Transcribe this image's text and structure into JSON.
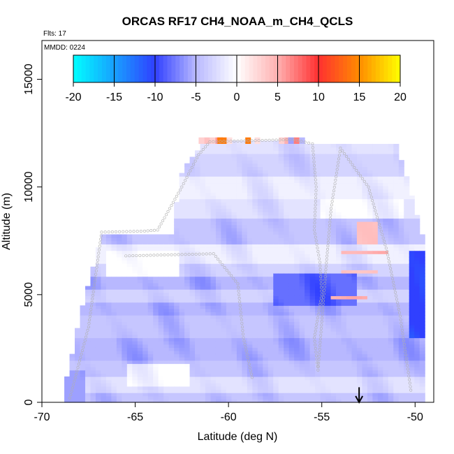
{
  "chart_data": {
    "type": "heatmap",
    "title": "ORCAS RF17 CH4_NOAA_m_CH4_QCLS",
    "flights_label": "Flts: 17",
    "date_label": "MMDD: 0224",
    "xlabel": "Latitude (deg N)",
    "ylabel": "Altitude (m)",
    "xlim": [
      -70,
      -49
    ],
    "ylim": [
      0,
      16800
    ],
    "x_ticks": [
      -70,
      -65,
      -60,
      -55,
      -50
    ],
    "x_tick_labels": [
      "-70",
      "-65",
      "-60",
      "-55",
      "-50"
    ],
    "y_ticks": [
      0,
      5000,
      10000,
      15000
    ],
    "y_tick_labels": [
      "0",
      "5000",
      "10000",
      "15000"
    ],
    "colorbar": {
      "min": -20,
      "max": 20,
      "ticks": [
        -20,
        -15,
        -10,
        -5,
        0,
        5,
        10,
        15,
        20
      ],
      "tick_labels": [
        "-20",
        "-15",
        "-10",
        "-5",
        "0",
        "5",
        "10",
        "15",
        "20"
      ],
      "stops": [
        {
          "v": -20,
          "color": "#00ffff"
        },
        {
          "v": -10,
          "color": "#3040ff"
        },
        {
          "v": -5,
          "color": "#b8b8ff"
        },
        {
          "v": 0,
          "color": "#ffffff"
        },
        {
          "v": 5,
          "color": "#ffb0b0"
        },
        {
          "v": 10,
          "color": "#ff3030"
        },
        {
          "v": 15,
          "color": "#ff8c00"
        },
        {
          "v": 20,
          "color": "#ffff00"
        }
      ]
    },
    "grid": false,
    "arrow_latitude": -53,
    "field": {
      "lat_range": [
        -68.8,
        -49.5
      ],
      "base_alt": 0,
      "top_alt_profile": [
        [
          -68.8,
          500
        ],
        [
          -68,
          3800
        ],
        [
          -67.2,
          6500
        ],
        [
          -66.8,
          7700
        ],
        [
          -63,
          7700
        ],
        [
          -62.6,
          10500
        ],
        [
          -61.8,
          11500
        ],
        [
          -61.2,
          12100
        ],
        [
          -57,
          12150
        ],
        [
          -55,
          11900
        ],
        [
          -51,
          11950
        ],
        [
          -50.5,
          10500
        ],
        [
          -50,
          9000
        ],
        [
          -49.5,
          7300
        ]
      ],
      "layers": [
        {
          "alt": [
            0,
            400
          ],
          "value": -4
        },
        {
          "alt": [
            400,
            1200
          ],
          "value": -2
        },
        {
          "alt": [
            1200,
            2000
          ],
          "value": -4
        },
        {
          "alt": [
            2000,
            3000
          ],
          "value": -5
        },
        {
          "alt": [
            3000,
            4000
          ],
          "value": -4
        },
        {
          "alt": [
            4000,
            4700
          ],
          "value": -5
        },
        {
          "alt": [
            4700,
            5200
          ],
          "value": -3
        },
        {
          "alt": [
            5200,
            5800
          ],
          "value": -5
        },
        {
          "alt": [
            5800,
            6500
          ],
          "value": -3
        },
        {
          "alt": [
            6500,
            7400
          ],
          "value": -1
        },
        {
          "alt": [
            7400,
            8500
          ],
          "value": -4
        },
        {
          "alt": [
            8500,
            9500
          ],
          "value": -2
        },
        {
          "alt": [
            9500,
            10500
          ],
          "value": -1
        },
        {
          "alt": [
            10500,
            11500
          ],
          "value": -3
        },
        {
          "alt": [
            11500,
            12200
          ],
          "value": -2
        }
      ],
      "features": [
        {
          "lat": [
            -66.5,
            -62.5
          ],
          "alt": [
            5800,
            7000
          ],
          "value": 0
        },
        {
          "lat": [
            -65.5,
            -62.0
          ],
          "alt": [
            800,
            1800
          ],
          "value": 0
        },
        {
          "lat": [
            -57.5,
            -53.0
          ],
          "alt": [
            4500,
            6000
          ],
          "value": -8
        },
        {
          "lat": [
            -55.0,
            -50.5
          ],
          "alt": [
            8500,
            9500
          ],
          "value": 0
        },
        {
          "lat": [
            -53.2,
            -52.0
          ],
          "alt": [
            7400,
            8400
          ],
          "value": 4
        },
        {
          "lat": [
            -54.0,
            -51.5
          ],
          "alt": [
            6900,
            7100
          ],
          "value": 5
        },
        {
          "lat": [
            -54.0,
            -52.0
          ],
          "alt": [
            6000,
            6200
          ],
          "value": 4
        },
        {
          "lat": [
            -54.5,
            -52.5
          ],
          "alt": [
            4800,
            5000
          ],
          "value": 5
        },
        {
          "lat": [
            -50.2,
            -49.5
          ],
          "alt": [
            3000,
            7000
          ],
          "value": -10
        },
        {
          "lat": [
            -68.8,
            -67.8
          ],
          "alt": [
            0,
            1500
          ],
          "value": -6
        }
      ],
      "top_row": {
        "alt": 12100,
        "cells": [
          {
            "lat": -61.6,
            "value": 3
          },
          {
            "lat": -61.3,
            "value": 4
          },
          {
            "lat": -61.0,
            "value": 3
          },
          {
            "lat": -60.7,
            "value": 6
          },
          {
            "lat": -60.4,
            "value": 14
          },
          {
            "lat": -60.1,
            "value": 2
          },
          {
            "lat": -59.1,
            "value": 14
          },
          {
            "lat": -58.6,
            "value": 2
          },
          {
            "lat": -57.3,
            "value": 3
          },
          {
            "lat": -57.0,
            "value": 5
          },
          {
            "lat": -56.8,
            "value": -6
          },
          {
            "lat": -56.5,
            "value": 7
          },
          {
            "lat": -56.2,
            "value": -5
          },
          {
            "lat": -60.6,
            "value": 14
          }
        ]
      }
    },
    "flight_track": [
      [
        -68.5,
        200
      ],
      [
        -67.5,
        3500
      ],
      [
        -66.8,
        7900
      ],
      [
        -64.5,
        7950
      ],
      [
        -63.8,
        8000
      ],
      [
        -62.5,
        10000
      ],
      [
        -61.6,
        11500
      ],
      [
        -61.0,
        12100
      ],
      [
        -56.5,
        12200
      ],
      [
        -55.5,
        12000
      ],
      [
        -55.3,
        10000
      ],
      [
        -55.4,
        8000
      ],
      [
        -55.1,
        6500
      ],
      [
        -55.0,
        5000
      ],
      [
        -55.4,
        3000
      ],
      [
        -55.2,
        1500
      ],
      [
        -54.8,
        6000
      ],
      [
        -54.5,
        9000
      ],
      [
        -54.0,
        11800
      ],
      [
        -52.5,
        10000
      ],
      [
        -51.5,
        7000
      ],
      [
        -50.8,
        4000
      ],
      [
        -50.2,
        400
      ],
      [
        -65.5,
        6800
      ],
      [
        -60.8,
        6900
      ],
      [
        -59.5,
        5500
      ],
      [
        -59.2,
        3000
      ],
      [
        -58.7,
        1000
      ],
      [
        -62.8,
        300
      ]
    ]
  }
}
